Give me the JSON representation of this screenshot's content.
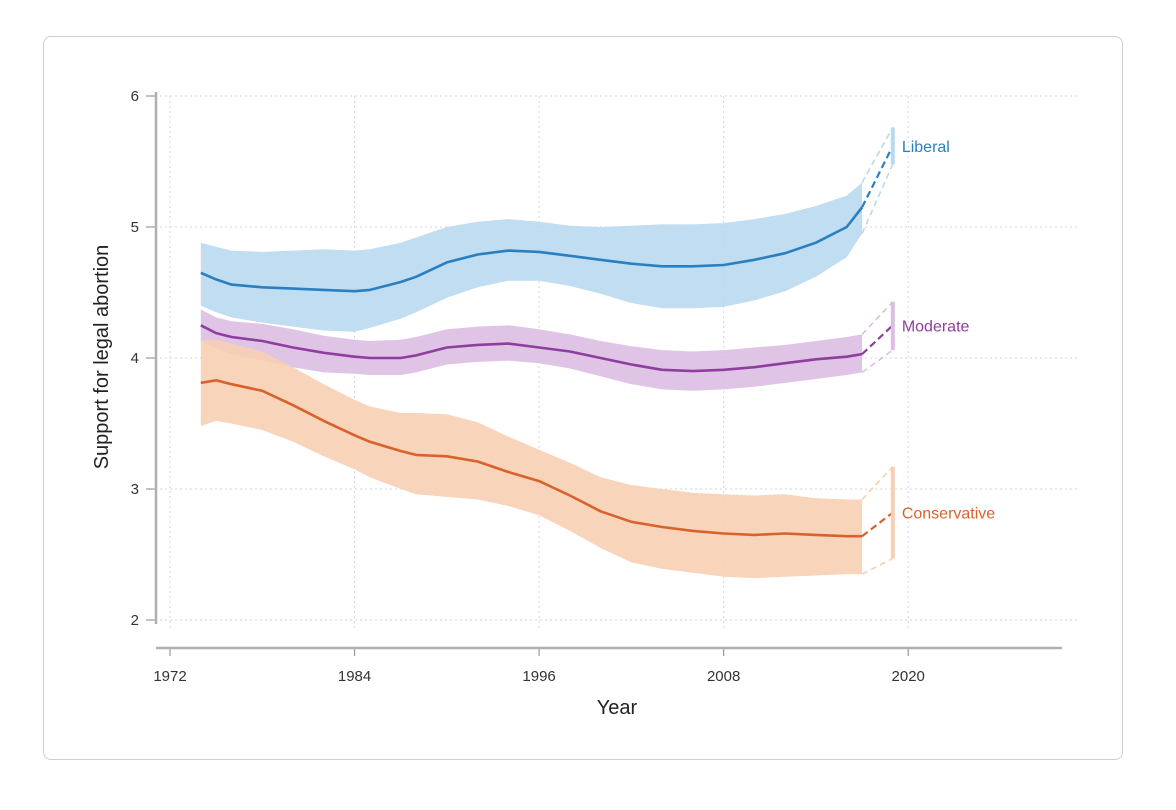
{
  "chart_data": {
    "type": "line",
    "title": "",
    "xlabel": "Year",
    "ylabel": "Support for legal abortion",
    "xlim": [
      1972,
      2030
    ],
    "ylim": [
      2,
      6
    ],
    "x_ticks": [
      "1972",
      "1984",
      "1996",
      "2008",
      "2020"
    ],
    "y_ticks": [
      "2",
      "3",
      "4",
      "5",
      "6"
    ],
    "grid": true,
    "series": [
      {
        "name": "Liberal",
        "color": "#2a7fc1",
        "band_color": "#b9d9ef",
        "x": [
          1974,
          1975,
          1976,
          1978,
          1980,
          1982,
          1984,
          1985,
          1987,
          1988,
          1990,
          1992,
          1994,
          1996,
          1998,
          2000,
          2002,
          2004,
          2006,
          2008,
          2010,
          2012,
          2014,
          2016,
          2017
        ],
        "values": [
          4.65,
          4.6,
          4.56,
          4.54,
          4.53,
          4.52,
          4.51,
          4.52,
          4.58,
          4.62,
          4.73,
          4.79,
          4.82,
          4.81,
          4.78,
          4.75,
          4.72,
          4.7,
          4.7,
          4.71,
          4.75,
          4.8,
          4.88,
          5.0,
          5.15
        ],
        "lower": [
          4.4,
          4.35,
          4.31,
          4.27,
          4.24,
          4.21,
          4.2,
          4.23,
          4.3,
          4.35,
          4.46,
          4.54,
          4.59,
          4.59,
          4.55,
          4.49,
          4.42,
          4.38,
          4.38,
          4.39,
          4.44,
          4.51,
          4.62,
          4.77,
          4.95
        ],
        "upper": [
          4.88,
          4.85,
          4.82,
          4.81,
          4.82,
          4.83,
          4.82,
          4.83,
          4.88,
          4.92,
          5.0,
          5.04,
          5.06,
          5.04,
          5.01,
          5.0,
          5.01,
          5.02,
          5.02,
          5.03,
          5.06,
          5.1,
          5.16,
          5.24,
          5.34
        ],
        "projection": {
          "x": [
            2017,
            2019
          ],
          "values": [
            5.15,
            5.62
          ],
          "lower": [
            4.95,
            5.48
          ],
          "upper": [
            5.34,
            5.76
          ]
        }
      },
      {
        "name": "Moderate",
        "color": "#8f3d9e",
        "band_color": "#dcbee3",
        "x": [
          1974,
          1975,
          1976,
          1978,
          1980,
          1982,
          1984,
          1985,
          1987,
          1988,
          1990,
          1992,
          1994,
          1996,
          1998,
          2000,
          2002,
          2004,
          2006,
          2008,
          2010,
          2012,
          2014,
          2016,
          2017
        ],
        "values": [
          4.25,
          4.19,
          4.16,
          4.13,
          4.08,
          4.04,
          4.01,
          4.0,
          4.0,
          4.02,
          4.08,
          4.1,
          4.11,
          4.08,
          4.05,
          4.0,
          3.95,
          3.91,
          3.9,
          3.91,
          3.93,
          3.96,
          3.99,
          4.01,
          4.03
        ],
        "lower": [
          4.13,
          4.07,
          4.03,
          3.98,
          3.93,
          3.89,
          3.88,
          3.87,
          3.87,
          3.89,
          3.95,
          3.97,
          3.98,
          3.96,
          3.92,
          3.86,
          3.8,
          3.76,
          3.75,
          3.76,
          3.78,
          3.81,
          3.84,
          3.87,
          3.89
        ],
        "upper": [
          4.37,
          4.31,
          4.28,
          4.26,
          4.22,
          4.17,
          4.14,
          4.13,
          4.14,
          4.16,
          4.22,
          4.24,
          4.25,
          4.22,
          4.18,
          4.13,
          4.09,
          4.06,
          4.05,
          4.06,
          4.08,
          4.1,
          4.13,
          4.16,
          4.18
        ],
        "projection": {
          "x": [
            2017,
            2019
          ],
          "values": [
            4.03,
            4.25
          ],
          "lower": [
            3.89,
            4.06
          ],
          "upper": [
            4.18,
            4.43
          ]
        }
      },
      {
        "name": "Conservative",
        "color": "#d9622b",
        "band_color": "#f7cfb4",
        "x": [
          1974,
          1975,
          1976,
          1978,
          1980,
          1982,
          1984,
          1985,
          1987,
          1988,
          1990,
          1992,
          1994,
          1996,
          1998,
          2000,
          2002,
          2004,
          2006,
          2008,
          2010,
          2012,
          2014,
          2016,
          2017
        ],
        "values": [
          3.81,
          3.83,
          3.8,
          3.75,
          3.64,
          3.52,
          3.41,
          3.36,
          3.29,
          3.26,
          3.25,
          3.21,
          3.13,
          3.06,
          2.95,
          2.83,
          2.75,
          2.71,
          2.68,
          2.66,
          2.65,
          2.66,
          2.65,
          2.64,
          2.64
        ],
        "lower": [
          3.48,
          3.52,
          3.5,
          3.45,
          3.36,
          3.25,
          3.15,
          3.09,
          3.0,
          2.96,
          2.94,
          2.92,
          2.87,
          2.8,
          2.68,
          2.55,
          2.44,
          2.39,
          2.36,
          2.33,
          2.32,
          2.33,
          2.34,
          2.35,
          2.35
        ],
        "upper": [
          4.14,
          4.14,
          4.11,
          4.05,
          3.93,
          3.8,
          3.68,
          3.63,
          3.58,
          3.58,
          3.57,
          3.51,
          3.4,
          3.3,
          3.2,
          3.09,
          3.03,
          3.0,
          2.97,
          2.96,
          2.95,
          2.96,
          2.93,
          2.92,
          2.92
        ],
        "projection": {
          "x": [
            2017,
            2019
          ],
          "values": [
            2.64,
            2.82
          ],
          "lower": [
            2.35,
            2.47
          ],
          "upper": [
            2.92,
            3.17
          ]
        }
      }
    ]
  }
}
